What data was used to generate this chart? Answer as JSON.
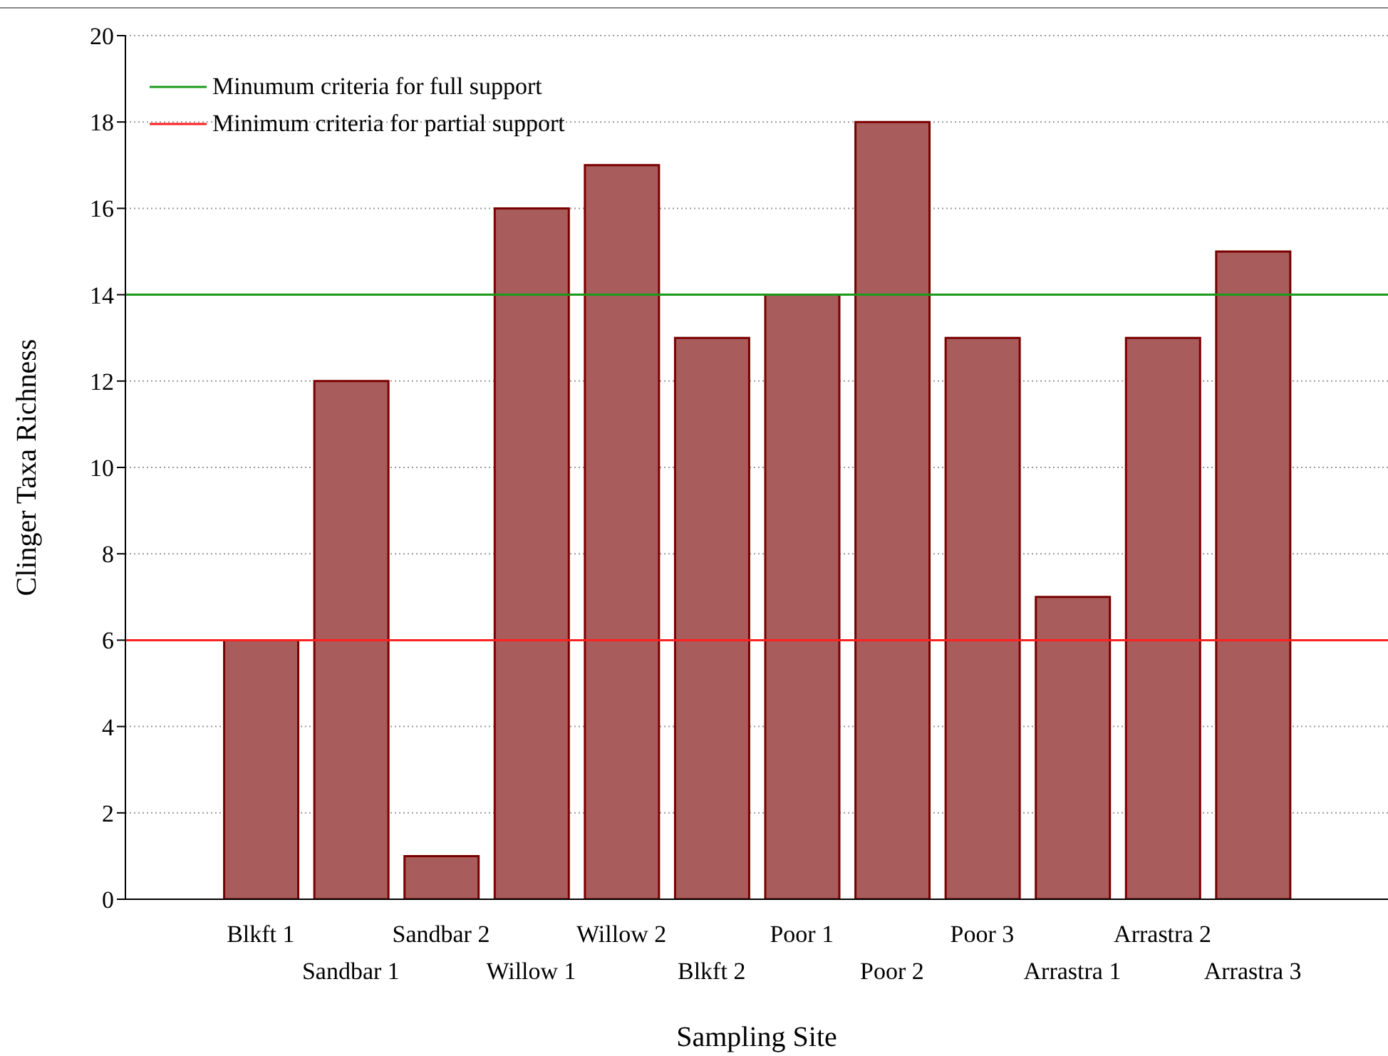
{
  "chart_data": {
    "type": "bar",
    "xlabel": "Sampling Site",
    "ylabel": "Clinger Taxa Richness",
    "categories": [
      null,
      "Blkft 1",
      "Sandbar 1",
      "Sandbar 2",
      "Willow 1",
      "Willow 2",
      "Blkft 2",
      "Poor 1",
      "Poor 2",
      "Poor 3",
      "Arrastra 1",
      "Arrastra 2",
      "Arrastra 3",
      null
    ],
    "values": [
      null,
      6,
      12,
      1,
      16,
      17,
      13,
      14,
      18,
      13,
      7,
      13,
      15,
      null
    ],
    "color": "#a85c5c",
    "ylim": [
      0,
      20
    ],
    "yticks": [
      0,
      2,
      4,
      6,
      8,
      10,
      12,
      14,
      16,
      18,
      20
    ],
    "grid": "y",
    "legend": "top left",
    "ref_lines": [
      {
        "axis": "y",
        "value": 14,
        "label": "Minumum criteria for full support",
        "color": "#1a9a1a"
      },
      {
        "axis": "y",
        "value": 6,
        "label": "Minimum criteria for partial support",
        "color": "#ff2020"
      }
    ]
  }
}
